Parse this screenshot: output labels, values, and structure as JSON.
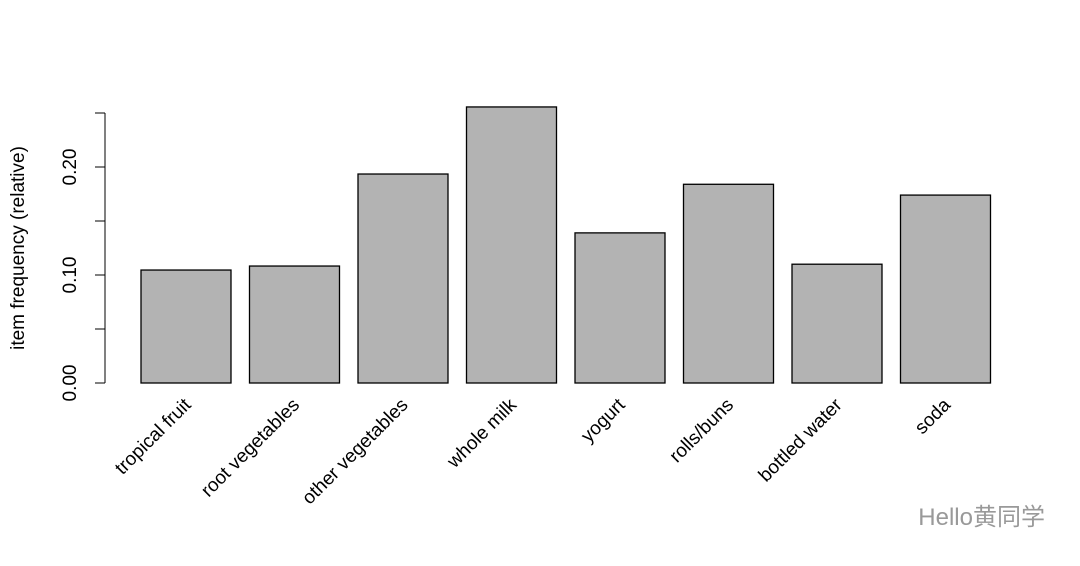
{
  "chart_data": {
    "type": "bar",
    "y_label": "item frequency (relative)",
    "categories": [
      "tropical fruit",
      "root vegetables",
      "other vegetables",
      "whole milk",
      "yogurt",
      "rolls/buns",
      "bottled water",
      "soda"
    ],
    "values": [
      0.1046,
      0.1083,
      0.1935,
      0.2556,
      0.139,
      0.184,
      0.11,
      0.174
    ],
    "color": "#b3b3b3",
    "ylim": [
      0,
      0.25
    ],
    "yticks": [
      {
        "value": 0,
        "label": "0.00"
      },
      {
        "value": 0.1,
        "label": "0.10"
      },
      {
        "value": 0.2,
        "label": "0.20"
      }
    ],
    "yticks_unlabeled": [
      0.05,
      0.15,
      0.25
    ],
    "grid": false
  },
  "watermark": "Hello黄同学"
}
